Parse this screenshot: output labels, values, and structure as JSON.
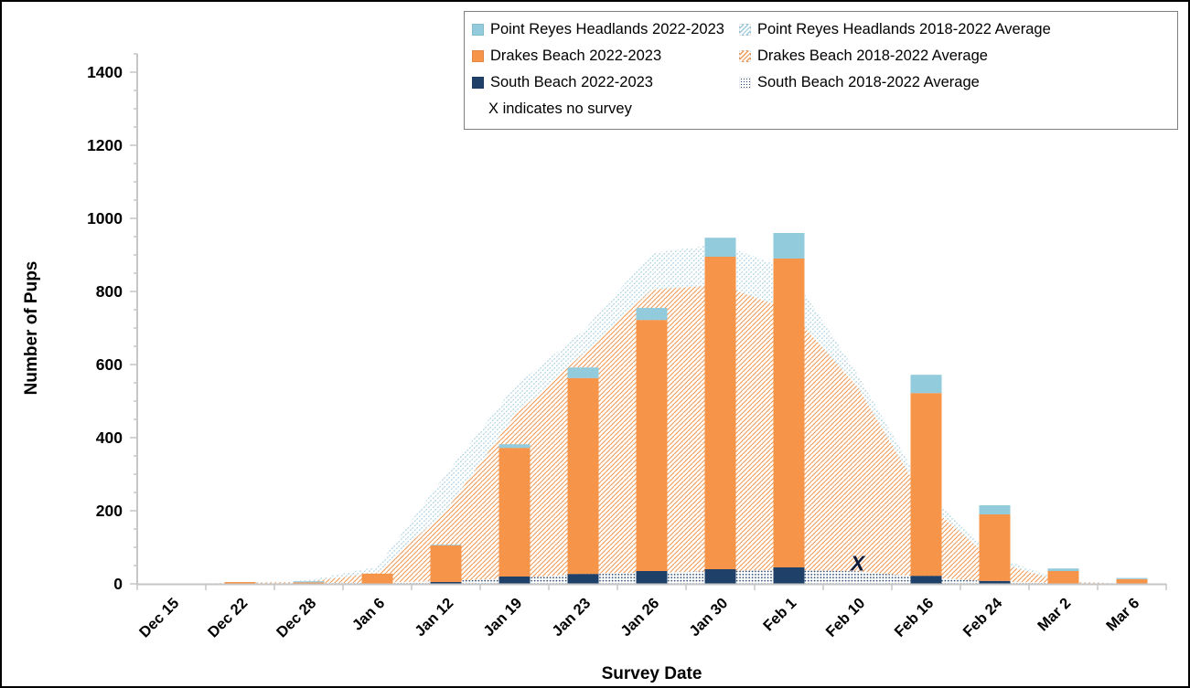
{
  "figure": {
    "kind": "stacked bar + stacked area chart of elephant seal pup counts",
    "background": "#ffffff"
  },
  "colors": {
    "point_reyes_current": "#92CBDC",
    "drakes_current": "#F6944A",
    "south_current": "#1F4068",
    "point_reyes_avg_hatch": "#9CC9DB",
    "drakes_avg_hatch": "#F29953",
    "south_avg_dots": "#1F4068",
    "axis": "#C6C6C6",
    "text": "#000000",
    "marker_x": "#101A35",
    "legend_border": "#7F7F7F",
    "figure_border": "#000000"
  },
  "legend": {
    "items": [
      {
        "label": "Point Reyes Headlands 2022-2023",
        "swatch": "solid-blue"
      },
      {
        "label": "Point Reyes Headlands 2018-2022 Average",
        "swatch": "hatch-blue"
      },
      {
        "label": "Drakes Beach 2022-2023",
        "swatch": "solid-orange"
      },
      {
        "label": "Drakes Beach 2018-2022 Average",
        "swatch": "hatch-orange"
      },
      {
        "label": "South Beach 2022-2023",
        "swatch": "solid-navy"
      },
      {
        "label": "South Beach 2018-2022 Average",
        "swatch": "dots-navy"
      },
      {
        "label": "X indicates no survey",
        "swatch": "none"
      }
    ]
  },
  "chart_data": {
    "type": "bar",
    "subtype": "stacked bars (2022-2023) over stacked areas (2018-2022 average)",
    "title": "",
    "xlabel": "Survey Date",
    "ylabel": "Number of Pups",
    "ylim": [
      0,
      1450
    ],
    "ytick_interval": 200,
    "yminor_interval": 50,
    "ymax_label": 1400,
    "grid": false,
    "legend_position": "top-right inside, boxed, two columns",
    "categories": [
      "Dec 15",
      "Dec 22",
      "Dec 28",
      "Jan 6",
      "Jan 12",
      "Jan 19",
      "Jan 23",
      "Jan 26",
      "Jan 30",
      "Feb 1",
      "Feb 10",
      "Feb 16",
      "Feb 24",
      "Mar 2",
      "Mar 6"
    ],
    "no_survey_index": 10,
    "no_survey_marker": "X",
    "bar_series": [
      {
        "name": "South Beach 2022-2023",
        "color_key": "south_current",
        "values": [
          0,
          0,
          0,
          0,
          5,
          20,
          27,
          35,
          40,
          45,
          null,
          22,
          8,
          0,
          0
        ]
      },
      {
        "name": "Drakes Beach 2022-2023",
        "color_key": "drakes_current",
        "values": [
          0,
          5,
          4,
          28,
          100,
          352,
          536,
          687,
          855,
          845,
          null,
          500,
          182,
          35,
          13
        ]
      },
      {
        "name": "Point Reyes Headlands 2022-2023",
        "color_key": "point_reyes_current",
        "values": [
          0,
          0,
          3,
          0,
          2,
          10,
          29,
          33,
          52,
          70,
          null,
          50,
          25,
          7,
          3
        ]
      }
    ],
    "area_series": [
      {
        "name": "South Beach 2018-2022 Average",
        "pattern": "dots-navy",
        "values": [
          0,
          1,
          2,
          3,
          8,
          15,
          28,
          30,
          35,
          38,
          34,
          18,
          6,
          2,
          0
        ]
      },
      {
        "name": "Drakes Beach 2018-2022 Average",
        "pattern": "hatch-orange",
        "values": [
          0,
          1,
          4,
          27,
          192,
          445,
          602,
          775,
          783,
          712,
          505,
          204,
          54,
          3,
          0
        ]
      },
      {
        "name": "Point Reyes Headlands 2018-2022 Average",
        "pattern": "hatch-blue",
        "values": [
          0,
          1,
          4,
          17,
          100,
          80,
          62,
          100,
          112,
          110,
          35,
          28,
          15,
          3,
          0
        ]
      }
    ]
  }
}
